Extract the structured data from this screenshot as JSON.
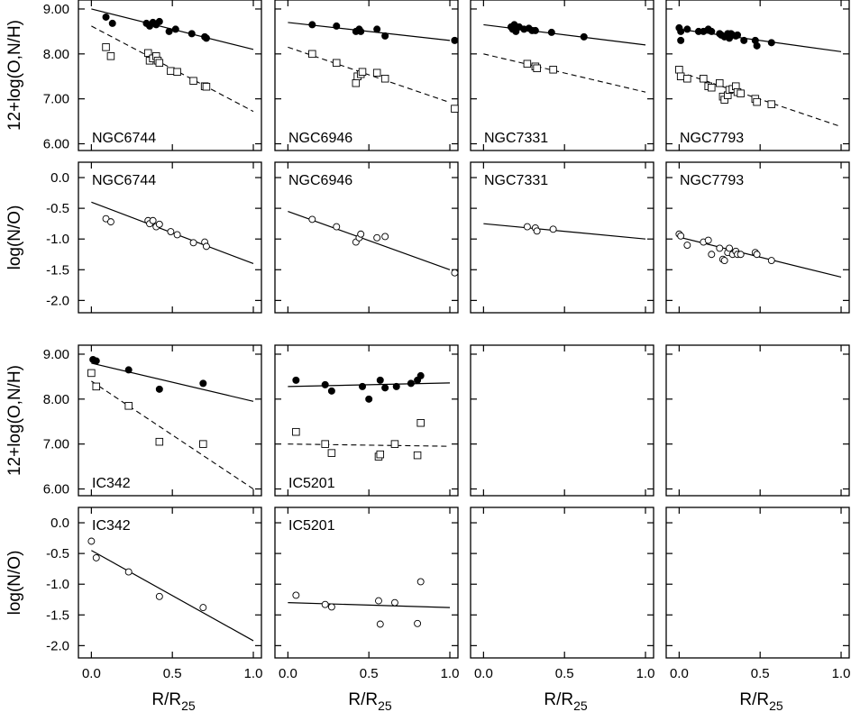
{
  "chart_data": {
    "type": "scatter",
    "xlabel": "R/R",
    "xlabel_sub": "25",
    "ylabel_abund": "12+log(O,N/H)",
    "ylabel_no": "log(N/O)",
    "xlim": [
      -0.08,
      1.05
    ],
    "ylim_abund": [
      5.85,
      9.2
    ],
    "ylim_no": [
      -2.2,
      0.25
    ],
    "x_ticks": [
      0.0,
      0.5,
      1.0
    ],
    "x_tick_labels": [
      "0.0",
      "0.5",
      "1.0"
    ],
    "y_ticks_abund": [
      6.0,
      7.0,
      8.0,
      9.0
    ],
    "y_tick_labels_abund": [
      "6.00",
      "7.00",
      "8.00",
      "9.00"
    ],
    "y_ticks_no": [
      0.0,
      -0.5,
      -1.0,
      -1.5,
      -2.0
    ],
    "y_tick_labels_no": [
      "0.0",
      "-0.5",
      "-1.0",
      "-1.5",
      "-2.0"
    ],
    "galaxies": [
      {
        "name": "NGC6744",
        "row": 0,
        "col": 0,
        "OH": [
          [
            0.09,
            8.82
          ],
          [
            0.13,
            8.68
          ],
          [
            0.34,
            8.68
          ],
          [
            0.36,
            8.62
          ],
          [
            0.38,
            8.7
          ],
          [
            0.4,
            8.65
          ],
          [
            0.42,
            8.72
          ],
          [
            0.48,
            8.5
          ],
          [
            0.52,
            8.55
          ],
          [
            0.62,
            8.45
          ],
          [
            0.7,
            8.38
          ],
          [
            0.71,
            8.35
          ]
        ],
        "NH": [
          [
            0.09,
            8.15
          ],
          [
            0.12,
            7.95
          ],
          [
            0.35,
            8.02
          ],
          [
            0.36,
            7.85
          ],
          [
            0.38,
            7.9
          ],
          [
            0.4,
            7.95
          ],
          [
            0.41,
            7.85
          ],
          [
            0.42,
            7.8
          ],
          [
            0.49,
            7.62
          ],
          [
            0.53,
            7.6
          ],
          [
            0.63,
            7.4
          ],
          [
            0.7,
            7.28
          ],
          [
            0.71,
            7.27
          ]
        ],
        "NO": [
          [
            0.09,
            -0.67
          ],
          [
            0.12,
            -0.72
          ],
          [
            0.35,
            -0.7
          ],
          [
            0.36,
            -0.75
          ],
          [
            0.38,
            -0.7
          ],
          [
            0.4,
            -0.8
          ],
          [
            0.42,
            -0.76
          ],
          [
            0.49,
            -0.88
          ],
          [
            0.53,
            -0.93
          ],
          [
            0.63,
            -1.06
          ],
          [
            0.7,
            -1.05
          ],
          [
            0.71,
            -1.12
          ]
        ],
        "fit_OH": [
          [
            0.0,
            9.0
          ],
          [
            1.0,
            8.1
          ]
        ],
        "fit_NH": [
          [
            0.0,
            8.62
          ],
          [
            1.0,
            6.72
          ]
        ],
        "fit_NO": [
          [
            0.0,
            -0.4
          ],
          [
            1.0,
            -1.4
          ]
        ]
      },
      {
        "name": "NGC6946",
        "row": 0,
        "col": 1,
        "OH": [
          [
            0.15,
            8.65
          ],
          [
            0.3,
            8.62
          ],
          [
            0.42,
            8.5
          ],
          [
            0.44,
            8.55
          ],
          [
            0.45,
            8.5
          ],
          [
            0.55,
            8.55
          ],
          [
            0.6,
            8.4
          ],
          [
            1.03,
            8.3
          ]
        ],
        "NH": [
          [
            0.15,
            8.0
          ],
          [
            0.3,
            7.8
          ],
          [
            0.42,
            7.35
          ],
          [
            0.43,
            7.5
          ],
          [
            0.45,
            7.55
          ],
          [
            0.46,
            7.6
          ],
          [
            0.55,
            7.58
          ],
          [
            0.6,
            7.45
          ],
          [
            1.03,
            6.78
          ]
        ],
        "NO": [
          [
            0.15,
            -0.68
          ],
          [
            0.3,
            -0.8
          ],
          [
            0.42,
            -1.05
          ],
          [
            0.44,
            -0.98
          ],
          [
            0.45,
            -0.92
          ],
          [
            0.55,
            -0.98
          ],
          [
            0.6,
            -0.96
          ],
          [
            1.03,
            -1.55
          ]
        ],
        "fit_OH": [
          [
            0.0,
            8.7
          ],
          [
            1.0,
            8.3
          ]
        ],
        "fit_NH": [
          [
            0.0,
            8.15
          ],
          [
            1.0,
            6.92
          ]
        ],
        "fit_NO": [
          [
            0.0,
            -0.55
          ],
          [
            1.0,
            -1.5
          ]
        ]
      },
      {
        "name": "NGC7331",
        "row": 0,
        "col": 2,
        "OH": [
          [
            0.17,
            8.6
          ],
          [
            0.18,
            8.55
          ],
          [
            0.19,
            8.65
          ],
          [
            0.2,
            8.5
          ],
          [
            0.22,
            8.6
          ],
          [
            0.25,
            8.55
          ],
          [
            0.28,
            8.57
          ],
          [
            0.3,
            8.52
          ],
          [
            0.32,
            8.52
          ],
          [
            0.42,
            8.48
          ],
          [
            0.62,
            8.38
          ]
        ],
        "NH": [
          [
            0.27,
            7.78
          ],
          [
            0.32,
            7.72
          ],
          [
            0.33,
            7.68
          ],
          [
            0.43,
            7.65
          ]
        ],
        "NO": [
          [
            0.27,
            -0.8
          ],
          [
            0.32,
            -0.82
          ],
          [
            0.33,
            -0.87
          ],
          [
            0.43,
            -0.84
          ]
        ],
        "fit_OH": [
          [
            0.0,
            8.65
          ],
          [
            1.0,
            8.2
          ]
        ],
        "fit_NH": [
          [
            0.0,
            8.0
          ],
          [
            1.0,
            7.15
          ]
        ],
        "fit_NO": [
          [
            0.0,
            -0.75
          ],
          [
            1.0,
            -1.0
          ]
        ]
      },
      {
        "name": "NGC7793",
        "row": 0,
        "col": 3,
        "OH": [
          [
            0.0,
            8.58
          ],
          [
            0.01,
            8.5
          ],
          [
            0.01,
            8.3
          ],
          [
            0.05,
            8.55
          ],
          [
            0.12,
            8.5
          ],
          [
            0.15,
            8.5
          ],
          [
            0.18,
            8.55
          ],
          [
            0.2,
            8.5
          ],
          [
            0.25,
            8.45
          ],
          [
            0.26,
            8.42
          ],
          [
            0.28,
            8.38
          ],
          [
            0.3,
            8.45
          ],
          [
            0.31,
            8.35
          ],
          [
            0.32,
            8.45
          ],
          [
            0.33,
            8.42
          ],
          [
            0.35,
            8.4
          ],
          [
            0.36,
            8.42
          ],
          [
            0.4,
            8.3
          ],
          [
            0.47,
            8.3
          ],
          [
            0.48,
            8.18
          ],
          [
            0.57,
            8.25
          ]
        ],
        "NH": [
          [
            0.0,
            7.65
          ],
          [
            0.01,
            7.5
          ],
          [
            0.05,
            7.45
          ],
          [
            0.15,
            7.45
          ],
          [
            0.18,
            7.28
          ],
          [
            0.2,
            7.25
          ],
          [
            0.25,
            7.35
          ],
          [
            0.27,
            7.05
          ],
          [
            0.28,
            6.98
          ],
          [
            0.3,
            7.08
          ],
          [
            0.31,
            7.2
          ],
          [
            0.33,
            7.22
          ],
          [
            0.35,
            7.28
          ],
          [
            0.36,
            7.15
          ],
          [
            0.38,
            7.12
          ],
          [
            0.47,
            7.0
          ],
          [
            0.48,
            6.93
          ],
          [
            0.57,
            6.88
          ]
        ],
        "NO": [
          [
            0.0,
            -0.92
          ],
          [
            0.01,
            -0.95
          ],
          [
            0.05,
            -1.1
          ],
          [
            0.15,
            -1.05
          ],
          [
            0.18,
            -1.02
          ],
          [
            0.2,
            -1.25
          ],
          [
            0.25,
            -1.15
          ],
          [
            0.27,
            -1.33
          ],
          [
            0.28,
            -1.35
          ],
          [
            0.3,
            -1.22
          ],
          [
            0.31,
            -1.15
          ],
          [
            0.33,
            -1.25
          ],
          [
            0.35,
            -1.2
          ],
          [
            0.36,
            -1.25
          ],
          [
            0.38,
            -1.25
          ],
          [
            0.47,
            -1.22
          ],
          [
            0.48,
            -1.25
          ],
          [
            0.57,
            -1.35
          ]
        ],
        "fit_OH": [
          [
            0.0,
            8.55
          ],
          [
            1.0,
            8.05
          ]
        ],
        "fit_NH": [
          [
            0.0,
            7.6
          ],
          [
            1.0,
            6.38
          ]
        ],
        "fit_NO": [
          [
            0.0,
            -0.97
          ],
          [
            1.0,
            -1.62
          ]
        ]
      },
      {
        "name": "IC342",
        "row": 1,
        "col": 0,
        "OH": [
          [
            0.01,
            8.88
          ],
          [
            0.03,
            8.85
          ],
          [
            0.23,
            8.65
          ],
          [
            0.42,
            8.22
          ],
          [
            0.69,
            8.35
          ]
        ],
        "NH": [
          [
            0.0,
            8.58
          ],
          [
            0.03,
            8.28
          ],
          [
            0.23,
            7.85
          ],
          [
            0.42,
            7.05
          ],
          [
            0.69,
            7.0
          ]
        ],
        "NO": [
          [
            0.0,
            -0.3
          ],
          [
            0.03,
            -0.57
          ],
          [
            0.23,
            -0.8
          ],
          [
            0.42,
            -1.2
          ],
          [
            0.69,
            -1.38
          ]
        ],
        "fit_OH": [
          [
            0.0,
            8.8
          ],
          [
            1.0,
            7.95
          ]
        ],
        "fit_NH": [
          [
            0.0,
            8.4
          ],
          [
            1.0,
            6.0
          ]
        ],
        "fit_NO": [
          [
            0.0,
            -0.45
          ],
          [
            1.0,
            -1.92
          ]
        ]
      },
      {
        "name": "IC5201",
        "row": 1,
        "col": 1,
        "OH": [
          [
            0.05,
            8.42
          ],
          [
            0.23,
            8.32
          ],
          [
            0.27,
            8.18
          ],
          [
            0.46,
            8.28
          ],
          [
            0.5,
            8.0
          ],
          [
            0.57,
            8.42
          ],
          [
            0.6,
            8.25
          ],
          [
            0.67,
            8.28
          ],
          [
            0.76,
            8.35
          ],
          [
            0.8,
            8.42
          ],
          [
            0.82,
            8.52
          ]
        ],
        "NH": [
          [
            0.05,
            7.27
          ],
          [
            0.23,
            7.0
          ],
          [
            0.27,
            6.8
          ],
          [
            0.56,
            6.72
          ],
          [
            0.57,
            6.77
          ],
          [
            0.66,
            7.0
          ],
          [
            0.8,
            6.75
          ],
          [
            0.82,
            7.47
          ]
        ],
        "NO": [
          [
            0.05,
            -1.18
          ],
          [
            0.23,
            -1.33
          ],
          [
            0.27,
            -1.37
          ],
          [
            0.56,
            -1.27
          ],
          [
            0.57,
            -1.65
          ],
          [
            0.66,
            -1.3
          ],
          [
            0.8,
            -1.64
          ],
          [
            0.82,
            -0.96
          ]
        ],
        "fit_OH": [
          [
            0.0,
            8.28
          ],
          [
            1.0,
            8.36
          ]
        ],
        "fit_NH": [
          [
            0.0,
            7.0
          ],
          [
            1.0,
            6.95
          ]
        ],
        "fit_NO": [
          [
            0.0,
            -1.3
          ],
          [
            1.0,
            -1.38
          ]
        ]
      }
    ]
  }
}
